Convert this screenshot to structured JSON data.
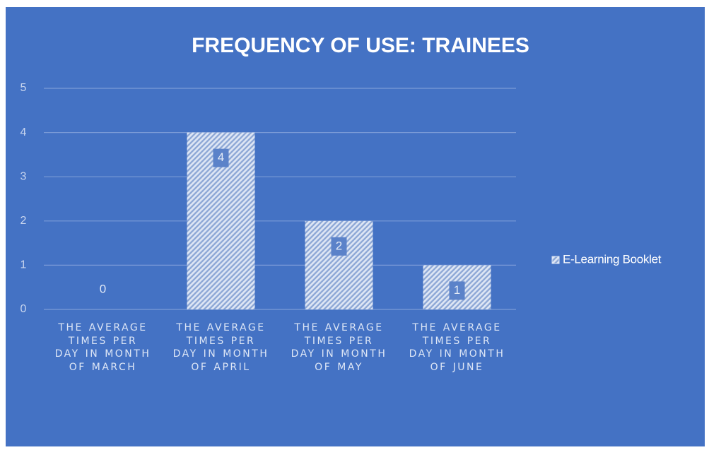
{
  "chart_data": {
    "type": "bar",
    "title": "FREQUENCY OF USE: TRAINEES",
    "categories": [
      "THE AVERAGE TIMES PER DAY IN MONTH OF MARCH",
      "THE AVERAGE TIMES PER DAY IN MONTH OF APRIL",
      "THE AVERAGE TIMES PER DAY IN MONTH OF MAY",
      "THE AVERAGE TIMES PER DAY IN MONTH OF JUNE"
    ],
    "series": [
      {
        "name": "E-Learning Booklet",
        "color": "#dfe7f5",
        "values": [
          0,
          4,
          2,
          1
        ]
      }
    ],
    "ylim": [
      0,
      5
    ],
    "yticks": [
      0,
      1,
      2,
      3,
      4,
      5
    ],
    "grid": true,
    "legend": "right"
  }
}
